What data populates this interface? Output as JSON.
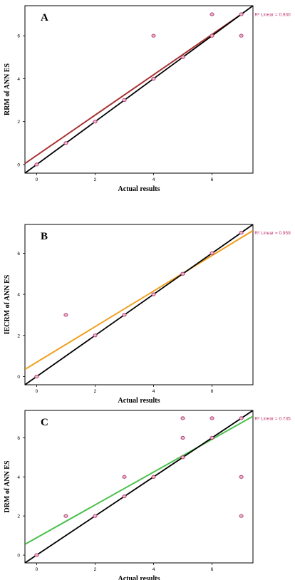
{
  "chart_data": [
    {
      "type": "scatter",
      "panel_label": "A",
      "xlabel": "Actual results",
      "ylabel": "RRM of ANN ES",
      "xlim": [
        -0.4,
        7.4
      ],
      "ylim": [
        -0.4,
        7.4
      ],
      "xticks": [
        0,
        2,
        4,
        6
      ],
      "yticks": [
        0,
        2,
        4,
        6
      ],
      "points": [
        [
          0,
          0
        ],
        [
          1,
          1
        ],
        [
          2,
          2
        ],
        [
          3,
          3
        ],
        [
          4,
          4
        ],
        [
          4,
          6
        ],
        [
          5,
          5
        ],
        [
          6,
          6
        ],
        [
          6,
          7
        ],
        [
          7,
          7
        ],
        [
          7,
          6
        ]
      ],
      "identity_line": true,
      "fit_line": {
        "x0": -0.4,
        "y0": 0.05,
        "x1": 7.0,
        "y1": 7.0,
        "color": "#a83232"
      },
      "r2_text": "R² Linear = 0.930",
      "point_color": "#b0306a",
      "r2_color": "#c0306a"
    },
    {
      "type": "scatter",
      "panel_label": "B",
      "xlabel": "Actual results",
      "ylabel": "IECRM of ANN ES",
      "xlim": [
        -0.4,
        7.4
      ],
      "ylim": [
        -0.4,
        7.4
      ],
      "xticks": [
        0,
        2,
        4,
        6
      ],
      "yticks": [
        0,
        2,
        4,
        6
      ],
      "points": [
        [
          0,
          0
        ],
        [
          1,
          3
        ],
        [
          2,
          2
        ],
        [
          3,
          3
        ],
        [
          4,
          4
        ],
        [
          5,
          5
        ],
        [
          6,
          6
        ],
        [
          7,
          7
        ]
      ],
      "identity_line": true,
      "fit_line": {
        "x0": -0.4,
        "y0": 0.35,
        "x1": 7.4,
        "y1": 7.1,
        "color": "#f0a020"
      },
      "r2_text": "R² Linear = 0.959",
      "point_color": "#b0306a",
      "r2_color": "#c0306a"
    },
    {
      "type": "scatter",
      "panel_label": "C",
      "xlabel": "Actual results",
      "ylabel": "DRM of ANN ES",
      "xlim": [
        -0.4,
        7.4
      ],
      "ylim": [
        -0.4,
        7.4
      ],
      "xticks": [
        0,
        2,
        4,
        6
      ],
      "yticks": [
        0,
        2,
        4,
        6
      ],
      "points": [
        [
          0,
          0
        ],
        [
          1,
          2
        ],
        [
          2,
          2
        ],
        [
          3,
          3
        ],
        [
          3,
          4
        ],
        [
          4,
          4
        ],
        [
          5,
          5
        ],
        [
          5,
          6
        ],
        [
          5,
          7
        ],
        [
          6,
          6
        ],
        [
          6,
          7
        ],
        [
          7,
          7
        ],
        [
          7,
          4
        ],
        [
          7,
          2
        ]
      ],
      "identity_line": true,
      "fit_line": {
        "x0": -0.4,
        "y0": 0.55,
        "x1": 7.4,
        "y1": 7.1,
        "color": "#4cc04c"
      },
      "r2_text": "R² Linear = 0.735",
      "point_color": "#b0306a",
      "r2_color": "#c0306a"
    }
  ]
}
